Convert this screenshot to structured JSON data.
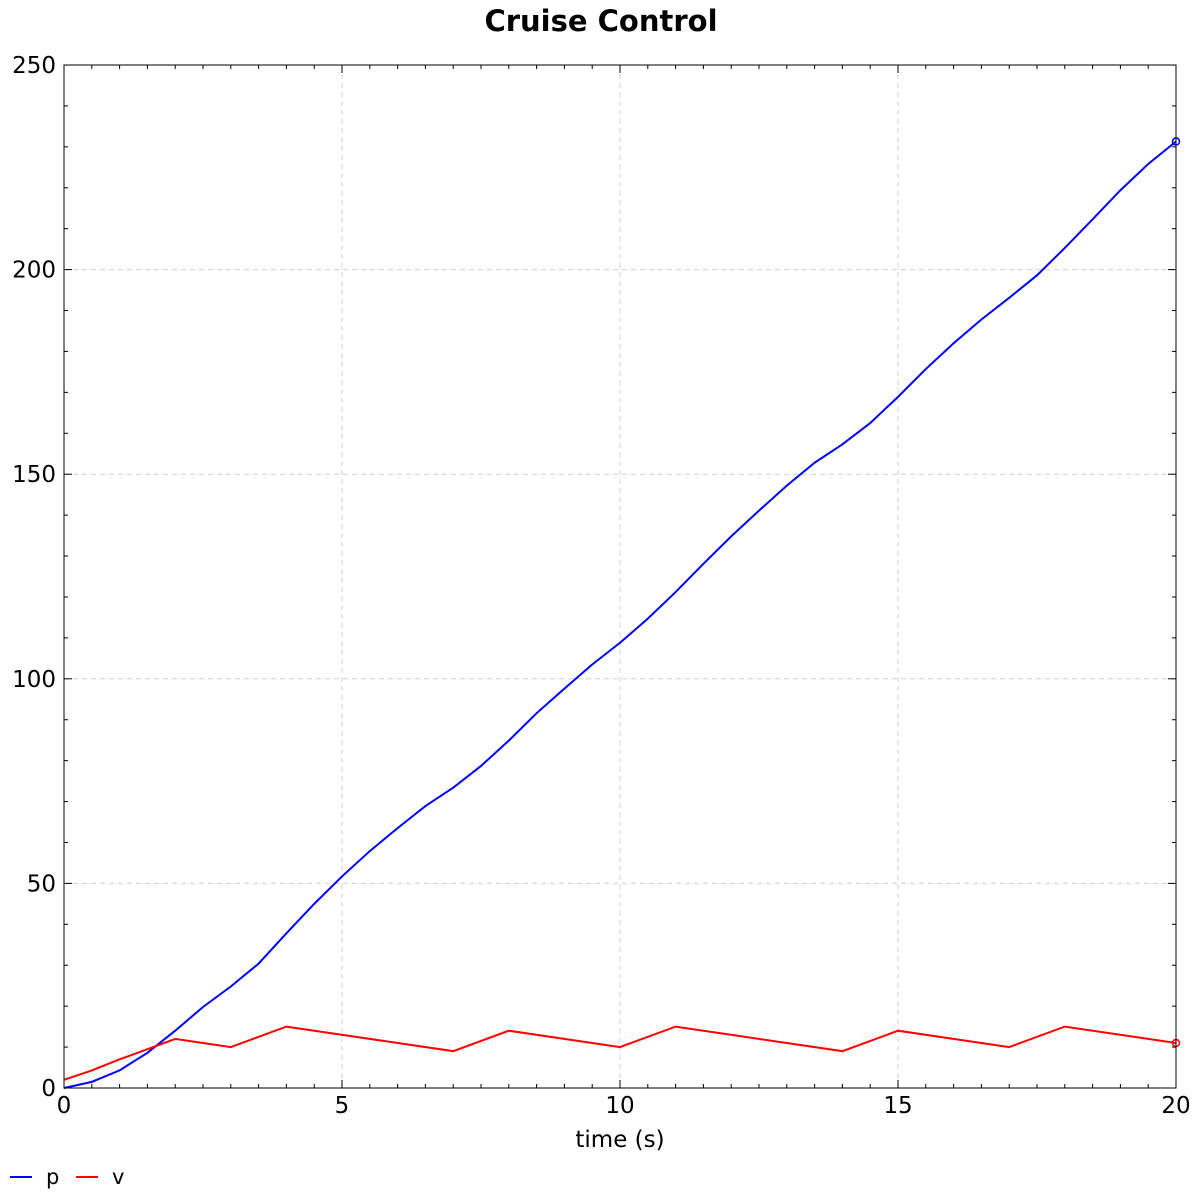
{
  "chart_data": {
    "type": "line",
    "title": "Cruise Control",
    "xlabel": "time (s)",
    "ylabel": "",
    "xlim": [
      0,
      20
    ],
    "ylim": [
      0,
      250
    ],
    "xticks": [
      0,
      5,
      10,
      15,
      20
    ],
    "yticks": [
      0,
      50,
      100,
      150,
      200,
      250
    ],
    "grid": true,
    "legend_position": "bottom-left",
    "series": [
      {
        "name": "p",
        "color": "#0000ff",
        "x": [
          0,
          0.5,
          1,
          1.5,
          2,
          2.5,
          3,
          3.5,
          4,
          4.5,
          5,
          5.5,
          6,
          6.5,
          7,
          7.5,
          8,
          8.5,
          9,
          9.5,
          10,
          10.5,
          11,
          11.5,
          12,
          12.5,
          13,
          13.5,
          14,
          14.5,
          15,
          15.5,
          16,
          16.5,
          17,
          17.5,
          18,
          18.5,
          19,
          19.5,
          20
        ],
        "y": [
          0,
          1.5,
          4.3,
          8.6,
          14,
          19.8,
          24.8,
          30.4,
          37.8,
          45,
          51.7,
          57.9,
          63.5,
          68.9,
          73.4,
          78.7,
          84.9,
          91.6,
          97.6,
          103.5,
          108.8,
          114.7,
          121.2,
          128.1,
          134.8,
          141.1,
          147.2,
          152.8,
          157.3,
          162.5,
          168.9,
          175.7,
          182,
          187.8,
          193.1,
          198.6,
          205.3,
          212.3,
          219.4,
          225.8,
          231.3
        ]
      },
      {
        "name": "v",
        "color": "#ff0000",
        "x": [
          0,
          0.5,
          1,
          1.5,
          2,
          3,
          4,
          7,
          8,
          10,
          11,
          14,
          15,
          17,
          18,
          20
        ],
        "y": [
          2,
          4.3,
          7,
          9.5,
          12,
          10,
          15,
          9,
          14,
          10,
          15,
          9,
          14,
          10,
          15,
          11
        ]
      }
    ]
  }
}
